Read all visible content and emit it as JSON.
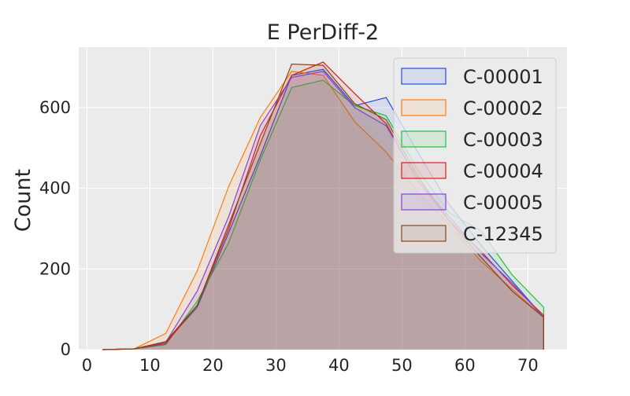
{
  "chart_data": {
    "type": "area",
    "title": "E PerDiff-2",
    "xlabel": "",
    "ylabel": "Count",
    "xlim": [
      -1.3,
      76.2
    ],
    "ylim": [
      0,
      750
    ],
    "xticks": [
      0,
      10,
      20,
      30,
      40,
      50,
      60,
      70
    ],
    "yticks": [
      0,
      200,
      400,
      600
    ],
    "grid": true,
    "legend": "top-right",
    "x": [
      2.5,
      7.5,
      12.5,
      17.5,
      22.5,
      27.5,
      32.5,
      37.5,
      42.5,
      47.5,
      52.5,
      57.5,
      62.5,
      67.5,
      72.5
    ],
    "series": [
      {
        "name": "C-00001",
        "color": "#1f4fdc",
        "values": [
          0,
          2,
          18,
          105,
          290,
          480,
          680,
          695,
          605,
          625,
          490,
          360,
          260,
          170,
          80
        ]
      },
      {
        "name": "C-00002",
        "color": "#ff7c0e",
        "values": [
          0,
          2,
          40,
          195,
          405,
          575,
          690,
          680,
          565,
          490,
          390,
          310,
          220,
          150,
          80
        ]
      },
      {
        "name": "C-00003",
        "color": "#22c03c",
        "values": [
          0,
          2,
          12,
          120,
          265,
          470,
          650,
          668,
          605,
          580,
          445,
          340,
          295,
          185,
          105
        ]
      },
      {
        "name": "C-00004",
        "color": "#dc1b1b",
        "values": [
          0,
          2,
          15,
          110,
          300,
          530,
          680,
          713,
          635,
          560,
          420,
          320,
          245,
          160,
          85
        ]
      },
      {
        "name": "C-00005",
        "color": "#8d3fd6",
        "values": [
          0,
          2,
          18,
          145,
          330,
          555,
          675,
          690,
          600,
          555,
          420,
          330,
          240,
          165,
          80
        ]
      },
      {
        "name": "C-12345",
        "color": "#8c4517",
        "values": [
          0,
          2,
          20,
          110,
          310,
          510,
          708,
          705,
          610,
          570,
          430,
          320,
          230,
          145,
          80
        ]
      }
    ]
  }
}
